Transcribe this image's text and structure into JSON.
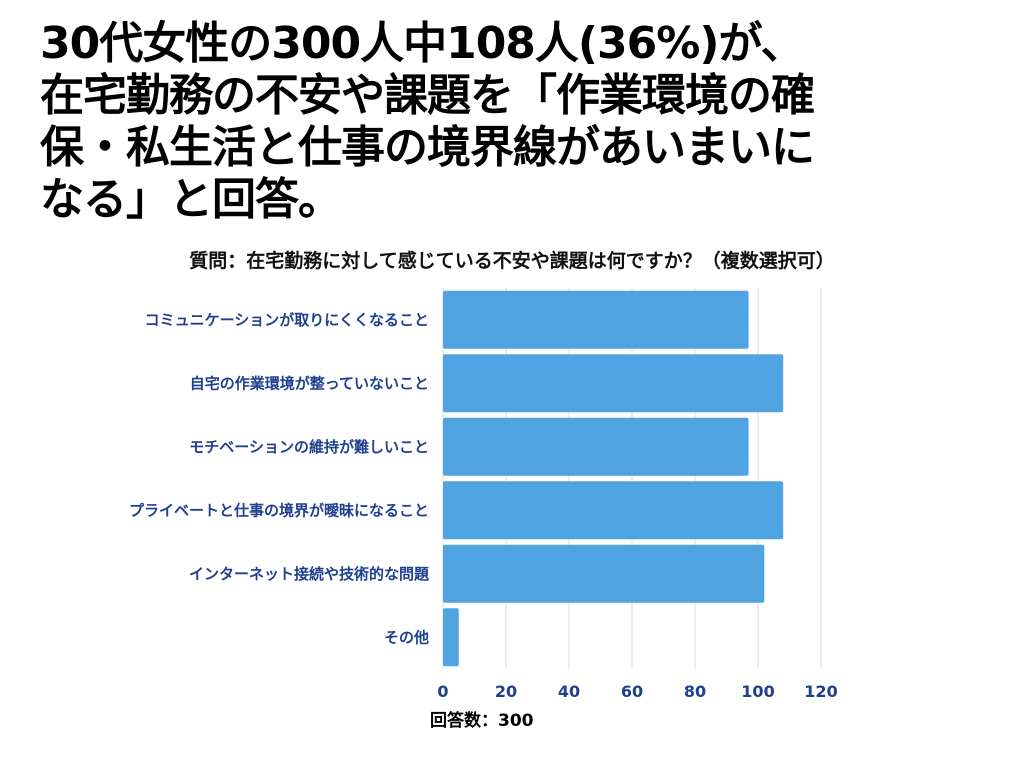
{
  "headline": {
    "lines": [
      "30代女性の300人中108人(36%)が、",
      "在宅勤務の不安や課題を「作業環境の確",
      "保・私生活と仕事の境界線があいまいに",
      "なる」と回答。"
    ]
  },
  "chart_data": {
    "type": "bar",
    "orientation": "horizontal",
    "title": "質問：在宅勤務に対して感じている不安や課題は何ですか？（複数選択可）",
    "xlabel": "回答数：300",
    "ylabel": "",
    "categories": [
      "コミュニケーションが取りにくくなること",
      "自宅の作業環境が整っていないこと",
      "モチベーションの維持が難しいこと",
      "プライベートと仕事の境界が曖昧になること",
      "インターネット接続や技術的な問題",
      "その他"
    ],
    "values": [
      97,
      108,
      97,
      108,
      102,
      5
    ],
    "xlim": [
      0,
      120
    ],
    "xticks": [
      0,
      20,
      40,
      60,
      80,
      100,
      120
    ],
    "grid": true,
    "bar_color": "#4fa3e0",
    "grid_color": "#dcdcdc",
    "label_color": "#1f3f8f"
  }
}
